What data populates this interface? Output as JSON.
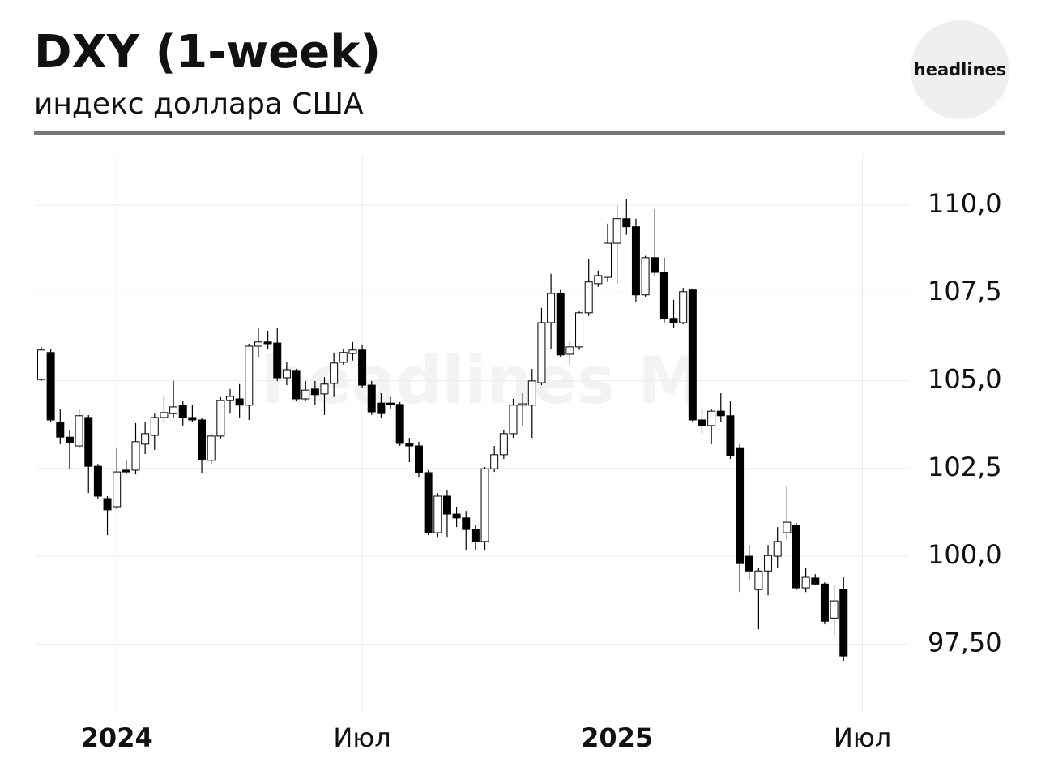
{
  "header": {
    "title": "DXY (1-week)",
    "subtitle": "индекс доллара США",
    "logo": "headlines"
  },
  "chart_data": {
    "type": "candlestick",
    "watermark": "headlines M",
    "up_color": "#ffffff",
    "down_color": "#000000",
    "grid": true,
    "ylim": [
      95.57,
      111.45
    ],
    "yticks": [
      {
        "value": 97.5,
        "label": "97,50"
      },
      {
        "value": 100,
        "label": "100,0"
      },
      {
        "value": 102.5,
        "label": "102,5"
      },
      {
        "value": 105,
        "label": "105,0"
      },
      {
        "value": 107.5,
        "label": "107,5"
      },
      {
        "value": 110,
        "label": "110,0"
      }
    ],
    "categories": [
      null,
      null,
      null,
      null,
      null,
      null,
      null,
      null,
      "2024",
      null,
      null,
      null,
      null,
      null,
      null,
      null,
      null,
      null,
      null,
      null,
      null,
      null,
      null,
      null,
      null,
      null,
      null,
      null,
      null,
      null,
      null,
      null,
      null,
      null,
      "Июл",
      null,
      null,
      null,
      null,
      null,
      null,
      null,
      null,
      null,
      null,
      null,
      null,
      null,
      null,
      null,
      null,
      null,
      null,
      null,
      null,
      null,
      null,
      null,
      null,
      null,
      null,
      "2025",
      null,
      null,
      null,
      null,
      null,
      null,
      null,
      null,
      null,
      null,
      null,
      null,
      null,
      null,
      null,
      null,
      null,
      null,
      null,
      null,
      null,
      null,
      null,
      null,
      null,
      "Июл"
    ],
    "open": [
      105.03,
      105.8,
      103.81,
      103.39,
      103.14,
      103.95,
      102.56,
      101.64,
      101.41,
      102.45,
      102.45,
      103.19,
      103.44,
      103.95,
      104.06,
      104.3,
      103.95,
      103.88,
      102.73,
      103.42,
      104.43,
      104.48,
      104.3,
      105.98,
      106.1,
      106.07,
      105.08,
      105.29,
      104.48,
      104.76,
      104.62,
      104.92,
      105.52,
      105.77,
      105.87,
      104.87,
      104.36,
      104.36,
      104.32,
      103.21,
      103.14,
      102.38,
      100.67,
      101.71,
      101.2,
      101.09,
      100.76,
      100.42,
      102.49,
      102.89,
      103.49,
      104.3,
      104.3,
      104.94,
      106.65,
      107.48,
      105.75,
      105.96,
      106.93,
      107.76,
      107.94,
      108.91,
      109.61,
      109.38,
      107.44,
      108.5,
      108.08,
      106.77,
      106.65,
      107.58,
      103.88,
      103.72,
      104.13,
      104.0,
      103.09,
      100.0,
      99.05,
      99.58,
      100.0,
      100.67,
      100.88,
      99.1,
      99.38,
      99.21,
      98.24,
      99.05,
      null,
      null
    ],
    "high": [
      105.96,
      105.91,
      104.18,
      103.6,
      104.18,
      104.02,
      102.63,
      101.71,
      103.09,
      102.73,
      103.79,
      103.83,
      104.06,
      104.57,
      104.99,
      104.41,
      104.3,
      103.93,
      103.49,
      104.53,
      104.76,
      104.9,
      106.05,
      106.49,
      106.42,
      106.49,
      105.54,
      105.33,
      104.99,
      104.99,
      105.1,
      105.8,
      105.91,
      106.1,
      106.03,
      104.99,
      104.64,
      104.53,
      104.39,
      103.37,
      103.26,
      102.45,
      101.8,
      101.87,
      101.41,
      101.29,
      100.88,
      102.54,
      103.14,
      103.6,
      104.48,
      104.64,
      105.33,
      107.07,
      108.04,
      107.58,
      106.14,
      106.97,
      108.45,
      108.13,
      109.47,
      109.98,
      110.16,
      109.61,
      108.55,
      109.88,
      108.5,
      107.3,
      107.64,
      107.62,
      104.18,
      104.2,
      104.64,
      104.41,
      103.19,
      100.32,
      99.68,
      100.32,
      100.83,
      101.99,
      100.95,
      99.68,
      99.49,
      99.26,
      99.17,
      99.4,
      null,
      null
    ],
    "low": [
      104.99,
      103.83,
      103.19,
      102.49,
      103.09,
      101.8,
      101.64,
      100.6,
      101.34,
      102.33,
      102.33,
      102.91,
      103.03,
      103.83,
      103.95,
      103.72,
      103.83,
      102.38,
      102.63,
      103.33,
      104.06,
      103.95,
      103.88,
      105.68,
      105.91,
      104.99,
      104.87,
      104.41,
      104.41,
      104.3,
      104.02,
      104.53,
      105.45,
      105.57,
      104.8,
      104.02,
      103.95,
      104.18,
      103.14,
      102.68,
      102.26,
      100.6,
      100.55,
      100.55,
      100.83,
      100.18,
      100.18,
      100.18,
      102.4,
      102.77,
      103.37,
      103.72,
      103.37,
      104.87,
      105.91,
      105.68,
      105.45,
      105.87,
      106.84,
      107.67,
      107.81,
      107.76,
      109.15,
      107.25,
      107.39,
      107.99,
      106.65,
      106.49,
      106.6,
      103.81,
      103.49,
      103.19,
      103.83,
      102.77,
      98.98,
      99.33,
      97.92,
      98.89,
      99.68,
      100.46,
      99.03,
      98.98,
      99.17,
      98.06,
      97.74,
      97.02,
      null,
      null
    ],
    "close": [
      105.87,
      103.88,
      103.39,
      103.23,
      104.0,
      102.56,
      101.71,
      101.32,
      102.4,
      102.4,
      103.26,
      103.49,
      103.95,
      104.09,
      104.25,
      103.95,
      103.88,
      102.75,
      103.42,
      104.43,
      104.55,
      104.3,
      105.98,
      106.1,
      106.05,
      105.08,
      105.31,
      104.48,
      104.73,
      104.6,
      104.9,
      105.5,
      105.8,
      105.87,
      104.87,
      104.11,
      104.06,
      104.34,
      103.21,
      103.14,
      102.38,
      100.67,
      101.71,
      101.2,
      101.09,
      100.76,
      100.42,
      102.49,
      102.89,
      103.49,
      104.3,
      104.34,
      104.99,
      106.65,
      107.48,
      105.73,
      105.96,
      106.93,
      107.81,
      107.99,
      108.91,
      109.61,
      109.38,
      107.44,
      108.5,
      108.08,
      106.77,
      106.65,
      107.53,
      103.88,
      103.72,
      104.13,
      104.0,
      102.86,
      99.79,
      99.58,
      99.58,
      100.02,
      100.42,
      100.97,
      99.1,
      99.4,
      99.21,
      98.15,
      98.73,
      97.16,
      null,
      null
    ]
  }
}
